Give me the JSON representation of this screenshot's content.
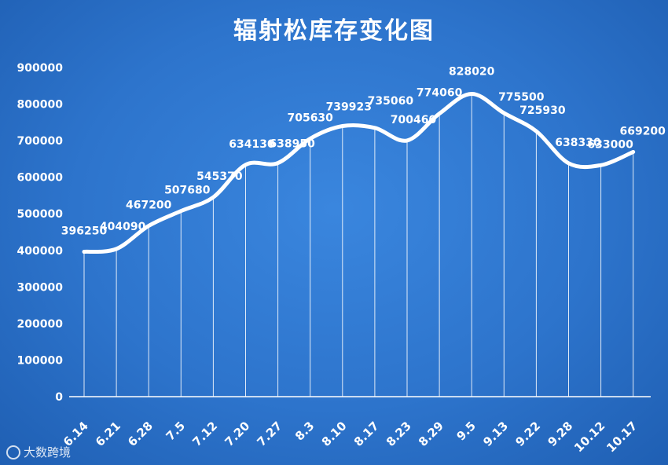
{
  "chart_data": {
    "type": "line",
    "title": "辐射松库存变化图",
    "xlabel": "",
    "ylabel": "",
    "categories": [
      "6.14",
      "6.21",
      "6.28",
      "7.5",
      "7.12",
      "7.20",
      "7.27",
      "8.3",
      "8.10",
      "8.17",
      "8.23",
      "8.29",
      "9.5",
      "9.13",
      "9.22",
      "9.28",
      "10.12",
      "10.17"
    ],
    "values": [
      396250,
      404090,
      467200,
      507680,
      545370,
      634130,
      638950,
      705630,
      739923,
      735060,
      700460,
      774060,
      828020,
      775500,
      725930,
      638330,
      633000,
      669200
    ],
    "data_labels": [
      "396250",
      "404090",
      "467200",
      "507680",
      "545370",
      "634130",
      "638950",
      "705630",
      "739923",
      "735060",
      "700460",
      "774060",
      "828020",
      "775500",
      "725930",
      "638330",
      "633000",
      "669200"
    ],
    "ylim": [
      0,
      900000
    ],
    "yticks": [
      "0",
      "100000",
      "200000",
      "300000",
      "400000",
      "500000",
      "600000",
      "700000",
      "800000",
      "900000"
    ],
    "grid": false,
    "legend": "none",
    "colors": {
      "background": "#2d74cc",
      "line": "#ffffff",
      "drop_lines": "#ffffff"
    }
  },
  "watermark": {
    "text": "大数跨境"
  }
}
